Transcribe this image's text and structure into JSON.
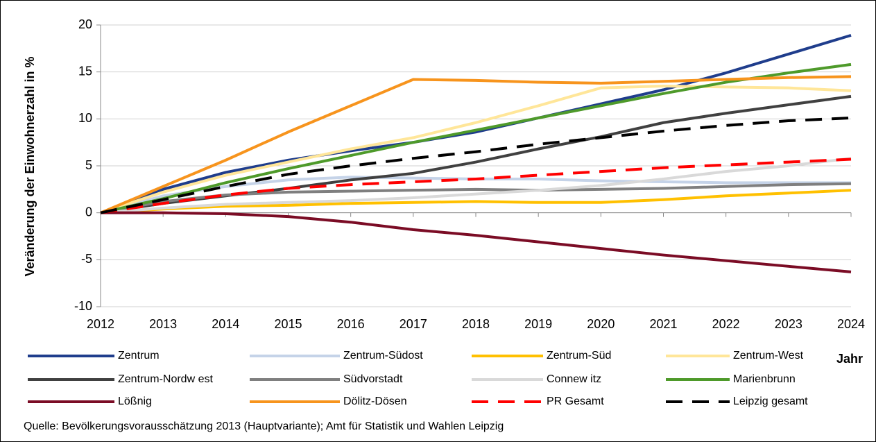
{
  "chart_data": {
    "type": "line",
    "y_label": "Veränderung der Einwohnerzahl in %",
    "x_label": "Jahr",
    "source": "Quelle: Bevölkerungsvorausschätzung 2013 (Hauptvariante); Amt für Statistik und Wahlen Leipzig",
    "x": [
      2012,
      2013,
      2014,
      2015,
      2016,
      2017,
      2018,
      2019,
      2020,
      2021,
      2022,
      2023,
      2024
    ],
    "xlim": [
      2012,
      2024
    ],
    "xticks": [
      2012,
      2013,
      2014,
      2015,
      2016,
      2017,
      2018,
      2019,
      2020,
      2021,
      2022,
      2023,
      2024
    ],
    "ylim": [
      -10,
      20
    ],
    "yticks": [
      -10,
      -5,
      0,
      5,
      10,
      15,
      20
    ],
    "grid": true,
    "series": [
      {
        "name": "Zentrum",
        "color": "#1f3d8c",
        "values": [
          0,
          2.5,
          4.3,
          5.6,
          6.6,
          7.5,
          8.6,
          10.1,
          11.6,
          13.1,
          14.9,
          16.9,
          18.9
        ]
      },
      {
        "name": "Zentrum-Südost",
        "color": "#c5d3e8",
        "values": [
          0,
          1.8,
          2.8,
          3.5,
          3.8,
          3.7,
          3.6,
          3.6,
          3.4,
          3.3,
          3.2,
          3.2,
          3.2
        ]
      },
      {
        "name": "Zentrum-Süd",
        "color": "#ffc000",
        "values": [
          0,
          0.4,
          0.7,
          0.8,
          1.0,
          1.1,
          1.2,
          1.1,
          1.1,
          1.4,
          1.8,
          2.1,
          2.4
        ]
      },
      {
        "name": "Zentrum-West",
        "color": "#ffe699",
        "values": [
          0,
          2.2,
          4.0,
          5.4,
          6.8,
          8.0,
          9.6,
          11.4,
          13.3,
          13.5,
          13.4,
          13.3,
          13.0
        ]
      },
      {
        "name": "Zentrum-Nordw est",
        "color": "#404040",
        "values": [
          0,
          1.0,
          1.8,
          2.6,
          3.5,
          4.2,
          5.4,
          6.8,
          8.1,
          9.6,
          10.6,
          11.5,
          12.4
        ]
      },
      {
        "name": "Südvorstadt",
        "color": "#7f7f7f",
        "values": [
          0,
          1.2,
          1.9,
          2.2,
          2.3,
          2.4,
          2.5,
          2.4,
          2.5,
          2.6,
          2.8,
          3.0,
          3.1
        ]
      },
      {
        "name": "Connew itz",
        "color": "#d9d9d9",
        "values": [
          0,
          0.5,
          0.9,
          1.1,
          1.3,
          1.6,
          2.0,
          2.4,
          2.9,
          3.6,
          4.4,
          5.0,
          5.8
        ]
      },
      {
        "name": "Marienbrunn",
        "color": "#4e9a2a",
        "values": [
          0,
          1.5,
          3.2,
          4.7,
          6.1,
          7.5,
          8.8,
          10.1,
          11.4,
          12.7,
          13.9,
          14.9,
          15.8
        ]
      },
      {
        "name": "Lößnig",
        "color": "#7b0c25",
        "values": [
          0,
          0,
          -0.1,
          -0.4,
          -1.0,
          -1.8,
          -2.4,
          -3.1,
          -3.8,
          -4.5,
          -5.1,
          -5.7,
          -6.3
        ]
      },
      {
        "name": "Dölitz-Dösen",
        "color": "#f7941d",
        "values": [
          0,
          2.8,
          5.6,
          8.6,
          11.4,
          14.2,
          14.1,
          13.9,
          13.8,
          14.0,
          14.2,
          14.4,
          14.5
        ]
      },
      {
        "name": "PR Gesamt",
        "color": "#ff0000",
        "dashed": true,
        "values": [
          0,
          1.0,
          1.9,
          2.6,
          3.0,
          3.3,
          3.6,
          4.0,
          4.4,
          4.8,
          5.1,
          5.4,
          5.7
        ]
      },
      {
        "name": "Leipzig gesamt",
        "color": "#000000",
        "dashed": true,
        "values": [
          0,
          1.4,
          2.8,
          4.1,
          5.0,
          5.8,
          6.5,
          7.3,
          8.0,
          8.7,
          9.3,
          9.8,
          10.1
        ]
      }
    ]
  }
}
